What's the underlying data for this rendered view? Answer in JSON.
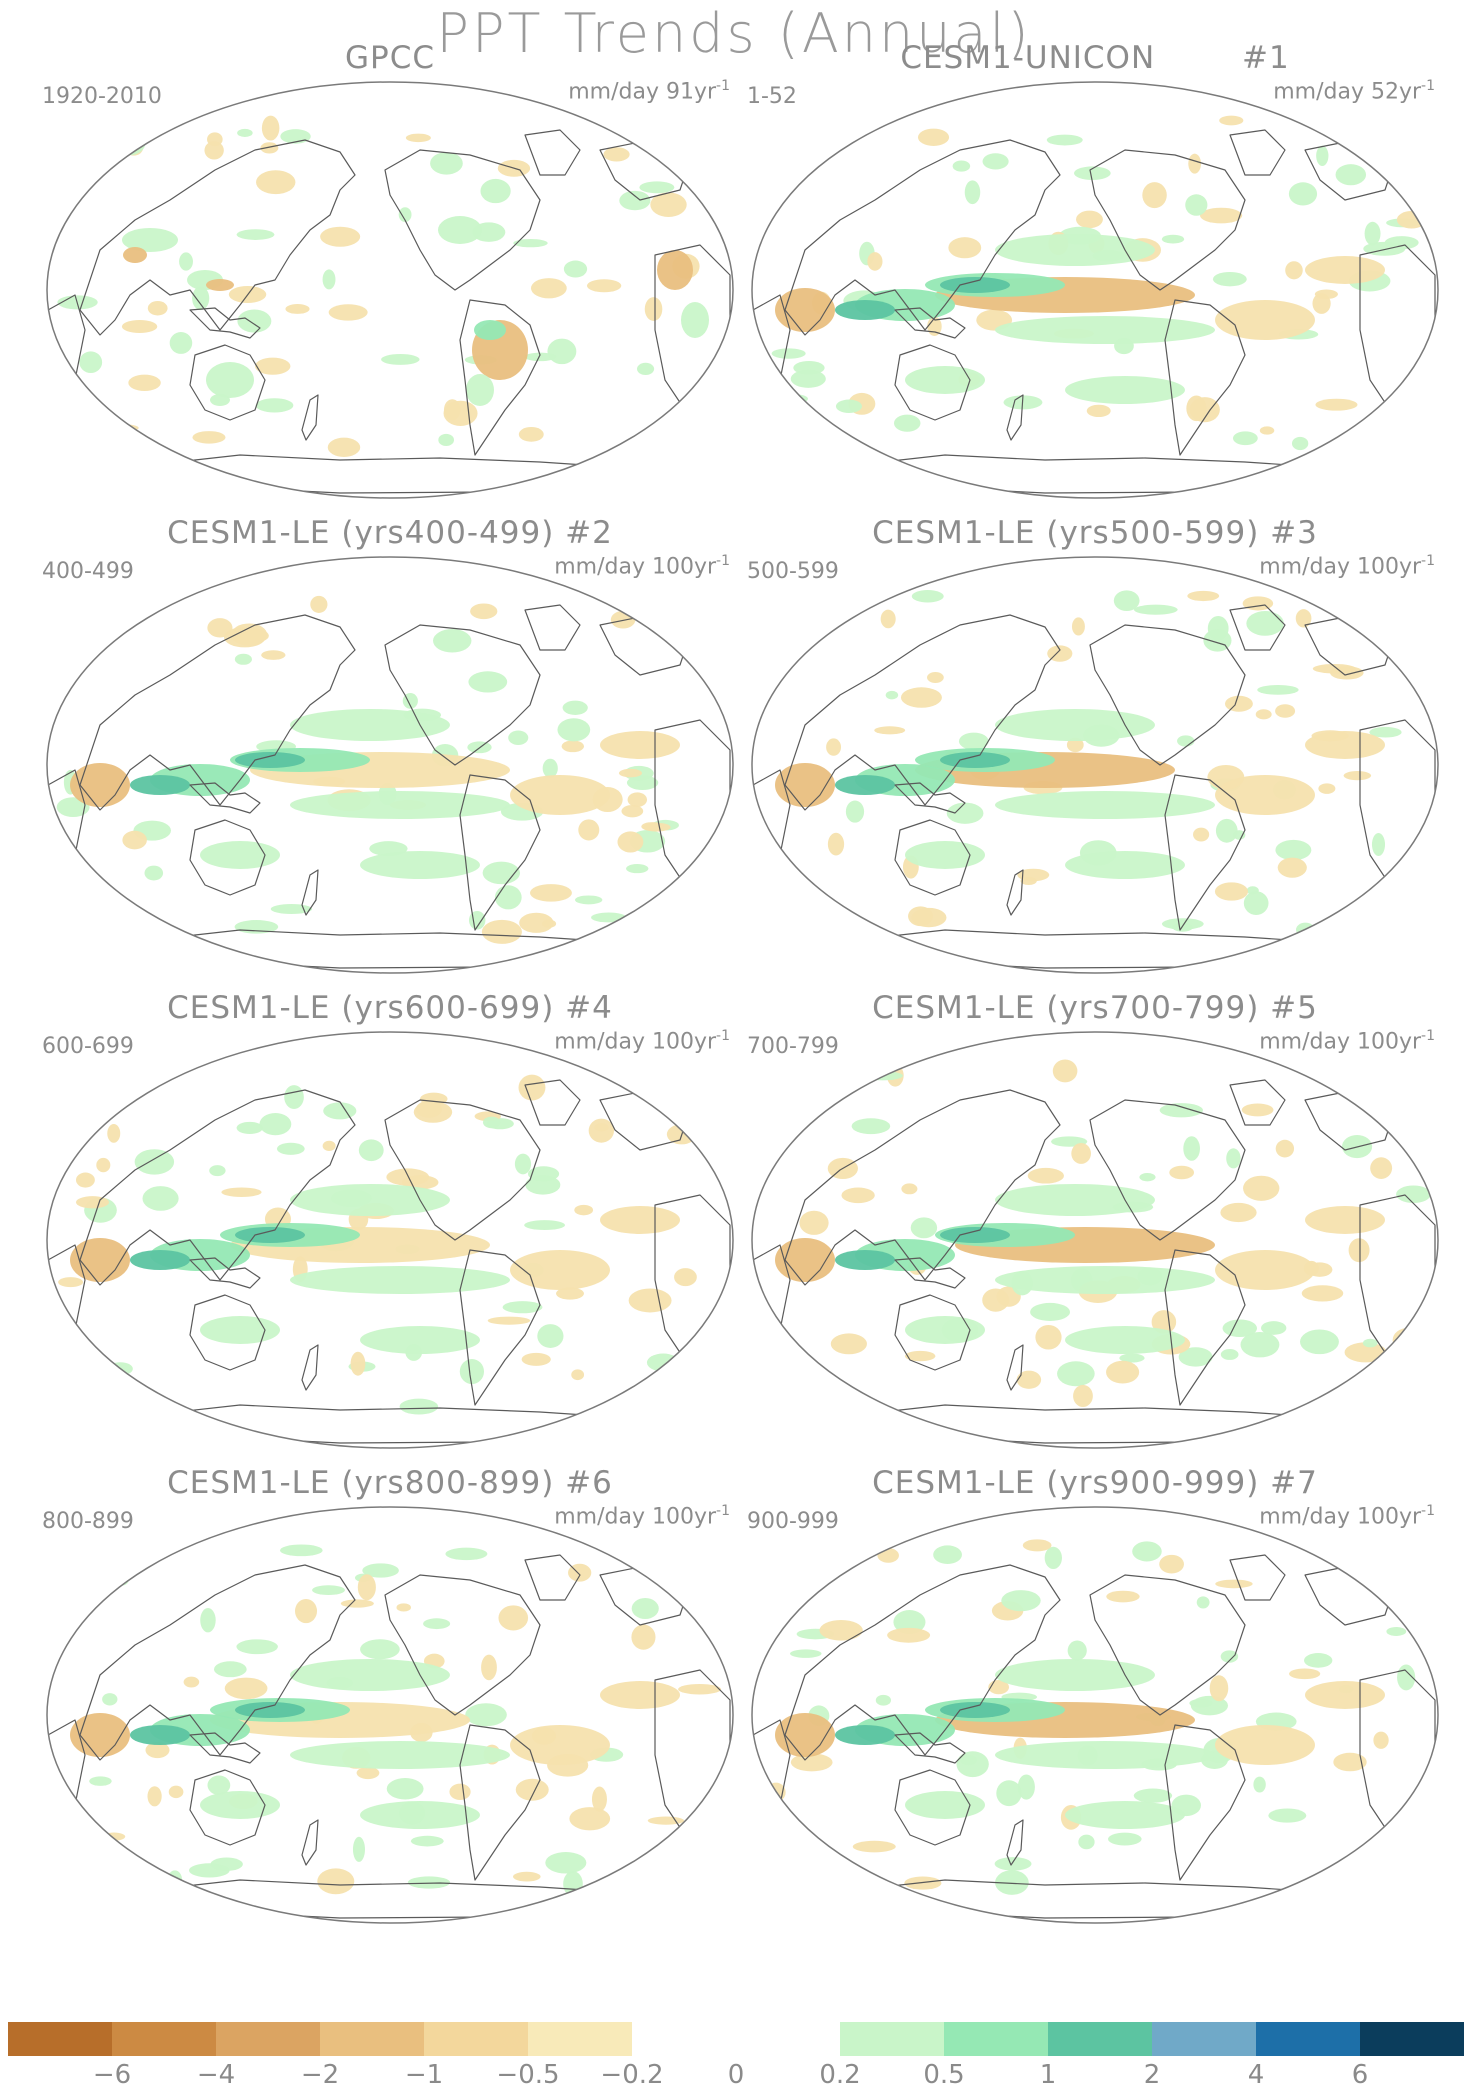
{
  "figure": {
    "title": "PPT Trends (Annual)"
  },
  "panels": [
    {
      "title": "GPCC",
      "period": "1920-2010",
      "units": "mm/day 91yr",
      "exp": "-1",
      "pattern": 0
    },
    {
      "title": "CESM1-UNICON        #1",
      "period": "1-52",
      "units": "mm/day 52yr",
      "exp": "-1",
      "pattern": 1
    },
    {
      "title": "CESM1-LE (yrs400-499) #2",
      "period": "400-499",
      "units": "mm/day 100yr",
      "exp": "-1",
      "pattern": 2
    },
    {
      "title": "CESM1-LE (yrs500-599) #3",
      "period": "500-599",
      "units": "mm/day 100yr",
      "exp": "-1",
      "pattern": 3
    },
    {
      "title": "CESM1-LE (yrs600-699) #4",
      "period": "600-699",
      "units": "mm/day 100yr",
      "exp": "-1",
      "pattern": 4
    },
    {
      "title": "CESM1-LE (yrs700-799) #5",
      "period": "700-799",
      "units": "mm/day 100yr",
      "exp": "-1",
      "pattern": 5
    },
    {
      "title": "CESM1-LE (yrs800-899) #6",
      "period": "800-899",
      "units": "mm/day 100yr",
      "exp": "-1",
      "pattern": 6
    },
    {
      "title": "CESM1-LE (yrs900-999) #7",
      "period": "900-999",
      "units": "mm/day 100yr",
      "exp": "-1",
      "pattern": 7
    }
  ],
  "colorbar": {
    "colors": [
      "#b76e2a",
      "#cc8a43",
      "#dba462",
      "#e9bf7f",
      "#f3d79c",
      "#f8eab9",
      "#ffffff",
      "#ffffff",
      "#c9f5c9",
      "#95e8b4",
      "#5cc4a1",
      "#70a9c8",
      "#1d6fa8",
      "#0b3d5c"
    ],
    "labels": [
      "−6",
      "−4",
      "−2",
      "−1",
      "−0.5",
      "−0.2",
      "0",
      "0.2",
      "0.5",
      "1",
      "2",
      "4",
      "6"
    ]
  },
  "palette": {
    "brown": "#e9bf7f",
    "light_brown": "#f6e2ae",
    "light_green": "#c9f5c9",
    "green": "#95e8b4",
    "dark_green": "#5cc4a1",
    "coast": "#5a5a5a",
    "outline": "#7a7a7a"
  }
}
